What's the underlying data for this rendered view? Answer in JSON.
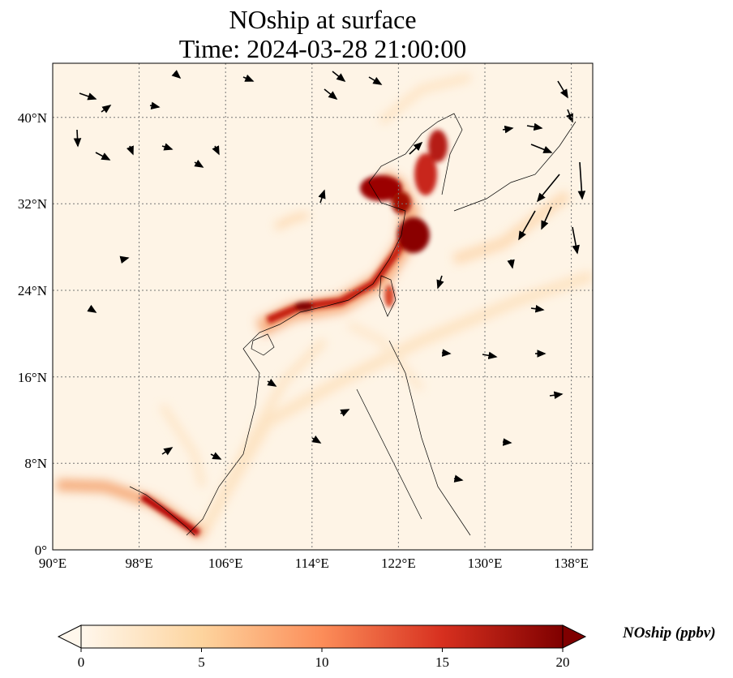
{
  "title_line1": "NOship at surface",
  "title_line2": "Time: 2024-03-28 21:00:00",
  "lon_ticks": [
    "90°E",
    "98°E",
    "106°E",
    "114°E",
    "122°E",
    "130°E",
    "138°E"
  ],
  "lat_ticks": [
    "0°",
    "8°N",
    "16°N",
    "24°N",
    "32°N",
    "40°N"
  ],
  "colorbar": {
    "label": "NOship (ppbv)",
    "ticks": [
      "0",
      "5",
      "10",
      "15",
      "20"
    ],
    "range": [
      0,
      20
    ],
    "extend": "both",
    "colormap": "OrRd",
    "colors": [
      "#fff7ec",
      "#fdd49e",
      "#fc8d59",
      "#d7301f",
      "#7f0000"
    ]
  },
  "map": {
    "lon_range": [
      90,
      140
    ],
    "lat_range": [
      0,
      45
    ],
    "gridlines": true,
    "overlay": "wind vectors"
  }
}
